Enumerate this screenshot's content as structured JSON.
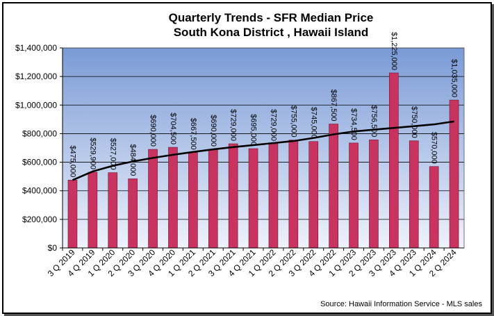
{
  "chart_data": {
    "type": "bar",
    "title": "Quarterly Trends - SFR Median Price",
    "subtitle": "South Kona District , Hawaii Island",
    "xlabel": "",
    "ylabel": "",
    "source": "Source:  Hawaii Information Service - MLS sales",
    "categories": [
      "3 Q 2019",
      "4 Q 2019",
      "1 Q 2020",
      "2 Q 2020",
      "3 Q 2020",
      "4 Q 2020",
      "1 Q 2021",
      "2 Q 2021",
      "3 Q 2021",
      "4 Q 2021",
      "1 Q 2022",
      "2 Q 2022",
      "3 Q 2022",
      "4 Q 2022",
      "1 Q 2023",
      "2 Q 2023",
      "3 Q 2023",
      "4 Q 2023",
      "1 Q 2024",
      "2 Q 2024"
    ],
    "values": [
      475000,
      529900,
      527000,
      484000,
      690000,
      704500,
      667500,
      690000,
      729000,
      695000,
      729000,
      755000,
      745000,
      867500,
      734500,
      756500,
      1225000,
      750000,
      570000,
      1035000
    ],
    "value_labels": [
      "$475,000",
      "$529,900",
      "$527,000",
      "$484,000",
      "$690,000",
      "$704,500",
      "$667,500",
      "$690,000",
      "$729,000",
      "$695,000",
      "$729,000",
      "$755,000",
      "$745,000",
      "$867,500",
      "$734,500",
      "$756,500",
      "$1,225,000",
      "$750,000",
      "$570,000",
      "$1,035,000"
    ],
    "trendline": {
      "type": "logarithmic",
      "values": [
        475000,
        535000,
        575000,
        605000,
        630000,
        652000,
        672000,
        690000,
        706000,
        720000,
        734000,
        748000,
        770000,
        795000,
        815000,
        828000,
        840000,
        852000,
        865000,
        885000
      ]
    },
    "ylim": [
      0,
      1400000
    ],
    "yticks": [
      0,
      200000,
      400000,
      600000,
      800000,
      1000000,
      1200000,
      1400000
    ],
    "ytick_labels": [
      "$0",
      "$200,000",
      "$400,000",
      "$600,000",
      "$800,000",
      "$1,000,000",
      "$1,200,000",
      "$1,400,000"
    ],
    "grid": true,
    "legend": "none",
    "colors": {
      "bar_fill": "#c8345f",
      "bar_stroke": "#6b1530",
      "trendline": "#000000",
      "plot_bg_top": "#7a9ad6",
      "plot_bg_bottom": "#eef2fb",
      "gridline": "#000000"
    }
  }
}
